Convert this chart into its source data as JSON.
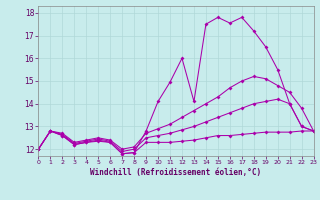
{
  "bg_color": "#c8ecec",
  "line_color": "#aa00aa",
  "grid_color": "#b0d8d8",
  "xlabel": "Windchill (Refroidissement éolien,°C)",
  "xlim": [
    0,
    23
  ],
  "ylim": [
    11.7,
    18.3
  ],
  "yticks": [
    12,
    13,
    14,
    15,
    16,
    17,
    18
  ],
  "xticks": [
    0,
    1,
    2,
    3,
    4,
    5,
    6,
    7,
    8,
    9,
    10,
    11,
    12,
    13,
    14,
    15,
    16,
    17,
    18,
    19,
    20,
    21,
    22,
    23
  ],
  "series": [
    {
      "x": [
        0,
        1,
        2,
        3,
        4,
        5,
        6,
        7,
        8,
        9,
        10,
        11,
        12,
        13,
        14,
        15,
        16,
        17,
        18,
        19,
        20,
        21,
        22,
        23
      ],
      "y": [
        12.0,
        12.8,
        12.6,
        12.2,
        12.3,
        12.4,
        12.3,
        11.8,
        11.85,
        12.3,
        12.3,
        12.3,
        12.35,
        12.4,
        12.5,
        12.6,
        12.6,
        12.65,
        12.7,
        12.75,
        12.75,
        12.75,
        12.8,
        12.8
      ]
    },
    {
      "x": [
        0,
        1,
        2,
        3,
        4,
        5,
        6,
        7,
        8,
        9,
        10,
        11,
        12,
        13,
        14,
        15,
        16,
        17,
        18,
        19,
        20,
        21,
        22,
        23
      ],
      "y": [
        12.0,
        12.8,
        12.65,
        12.25,
        12.35,
        12.45,
        12.35,
        11.9,
        12.0,
        12.5,
        12.6,
        12.7,
        12.85,
        13.0,
        13.2,
        13.4,
        13.6,
        13.8,
        14.0,
        14.1,
        14.2,
        14.0,
        13.0,
        12.8
      ]
    },
    {
      "x": [
        0,
        1,
        2,
        3,
        4,
        5,
        6,
        7,
        8,
        9,
        10,
        11,
        12,
        13,
        14,
        15,
        16,
        17,
        18,
        19,
        20,
        21,
        22,
        23
      ],
      "y": [
        12.0,
        12.8,
        12.7,
        12.3,
        12.4,
        12.5,
        12.4,
        12.0,
        12.1,
        12.7,
        12.9,
        13.1,
        13.4,
        13.7,
        14.0,
        14.3,
        14.7,
        15.0,
        15.2,
        15.1,
        14.8,
        14.5,
        13.8,
        12.8
      ]
    },
    {
      "x": [
        0,
        1,
        2,
        3,
        4,
        5,
        6,
        7,
        8,
        9,
        10,
        11,
        12,
        13,
        14,
        15,
        16,
        17,
        18,
        19,
        20,
        21,
        22,
        23
      ],
      "y": [
        12.0,
        12.8,
        12.6,
        12.2,
        12.3,
        12.35,
        12.3,
        11.8,
        11.85,
        12.8,
        14.1,
        14.95,
        16.0,
        14.1,
        17.5,
        17.8,
        17.55,
        17.8,
        17.2,
        16.5,
        15.5,
        14.0,
        13.0,
        12.8
      ]
    }
  ]
}
